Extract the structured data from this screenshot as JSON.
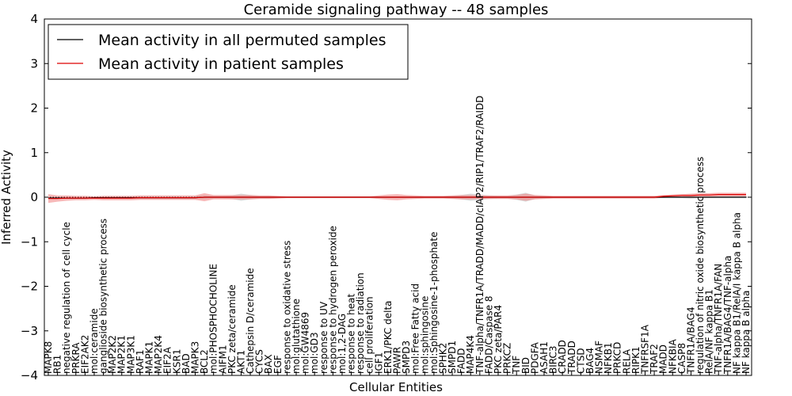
{
  "chart_data": {
    "type": "line",
    "title": "Ceramide signaling pathway -- 48 samples",
    "xlabel": "Cellular Entities",
    "ylabel": "Inferred Activity",
    "ylim": [
      -4,
      4
    ],
    "yticks": [
      "4",
      "3",
      "2",
      "1",
      "0",
      "−1",
      "−2",
      "−3",
      "−4"
    ],
    "grid": false,
    "legend_position": "upper-left",
    "categories": [
      "MAPK8",
      "RB1",
      "negative regulation of cell cycle",
      "PRKRA",
      "EIF2AK2",
      "mol:ceramide",
      "ganglioside biosynthetic process",
      "MAP2K2",
      "MAP2K1",
      "MAP3K1",
      "RAF1",
      "MAPK1",
      "MAP2K4",
      "EIF2A",
      "KSR1",
      "BAD",
      "MAPK3",
      "BCL2",
      "mol:PHOSPHOCHOLINE",
      "AIFM1",
      "PKC zeta/ceramide",
      "AKT1",
      "Cathepsin D/ceramide",
      "CYCS",
      "BAX",
      "EGF",
      "response to oxidative stress",
      "mol:glutathione",
      "mol:GW4869",
      "mol:GD3",
      "response to UV",
      "response to hydrogen peroxide",
      "mol:1,2-DAG",
      "response to heat",
      "response to radiation",
      "cell proliferation",
      "IGF1",
      "ERK1/PKC delta",
      "PAWR",
      "SMPD3",
      "mol:Free Fatty acid",
      "mol:sphingosine",
      "mol:Sphingosine-1-phosphate",
      "SPHK2",
      "SMPD1",
      "FADD",
      "MAP4K4",
      "TNF-alpha/TNFR1A/TRADD/MADD/cIAP2/RIP1/TRAF2/RAIDD",
      "FADD/Caspase 8",
      "PKC zeta/PAR4",
      "PRKCZ",
      "TNF",
      "BID",
      "PDGFA",
      "ASAH1",
      "BIRC3",
      "CRADD",
      "TRADD",
      "CTSD",
      "BAG4",
      "NSMAF",
      "NFKB1",
      "PRKCD",
      "RELA",
      "RIPK1",
      "TNFRSF1A",
      "TRAF2",
      "MADD",
      "NFKBIA",
      "CASP8",
      "TNFR1A/BAG4",
      "regulation of nitric oxide biosynthetic process",
      "RelA/NF kappa B1",
      "TNF-alpha/TNFR1A/FAN",
      "TNFR1A/BAG4/TNF-alpha",
      "NF kappa B1/RelA/I kappa B alpha",
      "NF kappa B alpha"
    ],
    "series": [
      {
        "name": "Mean activity in all permuted samples",
        "color": "#000000",
        "band_color": "#b0b0b0",
        "values": [
          -0.02,
          -0.02,
          -0.02,
          -0.02,
          -0.02,
          -0.01,
          -0.01,
          -0.01,
          -0.01,
          -0.01,
          -0.01,
          -0.01,
          -0.01,
          -0.01,
          -0.01,
          -0.01,
          -0.01,
          0,
          0,
          0,
          0,
          0,
          0,
          0,
          0,
          0,
          0,
          0,
          0,
          0,
          0,
          0,
          0,
          0,
          0,
          0,
          0,
          0,
          0,
          0,
          0,
          0,
          0,
          0,
          0,
          0,
          0,
          0,
          0,
          0,
          0,
          0,
          0,
          0,
          0,
          0,
          0,
          0,
          0,
          0,
          0,
          0,
          0,
          0,
          0,
          0,
          0,
          0,
          0,
          0,
          0,
          0,
          0,
          0,
          0,
          0,
          0
        ],
        "band": [
          0.02,
          0.02,
          0.02,
          0.02,
          0.02,
          0.02,
          0.03,
          0.03,
          0.03,
          0.03,
          0.03,
          0.03,
          0.03,
          0.03,
          0.03,
          0.03,
          0.03,
          0.05,
          0.03,
          0.03,
          0.04,
          0.08,
          0.05,
          0.03,
          0.03,
          0.02,
          0.02,
          0.02,
          0.02,
          0.02,
          0.02,
          0.02,
          0.02,
          0.02,
          0.02,
          0.02,
          0.02,
          0.02,
          0.02,
          0.02,
          0.02,
          0.02,
          0.02,
          0.02,
          0.03,
          0.05,
          0.08,
          0.06,
          0.04,
          0.03,
          0.03,
          0.06,
          0.1,
          0.04,
          0.03,
          0.02,
          0.02,
          0.02,
          0.02,
          0.02,
          0.02,
          0.02,
          0.02,
          0.02,
          0.02,
          0.02,
          0.02,
          0.02,
          0.02,
          0.02,
          0.03,
          0.02,
          0.02,
          0.02,
          0.02,
          0.02,
          0.02
        ]
      },
      {
        "name": "Mean activity in patient samples",
        "color": "#dd0000",
        "band_color": "#f08080",
        "values": [
          -0.03,
          -0.03,
          -0.02,
          -0.02,
          -0.02,
          -0.02,
          -0.02,
          -0.02,
          -0.02,
          -0.02,
          -0.01,
          -0.01,
          -0.01,
          -0.01,
          -0.01,
          -0.01,
          -0.01,
          0,
          0,
          0,
          0,
          0,
          0,
          0,
          0,
          0,
          0,
          0,
          0,
          0,
          0,
          0,
          0,
          0,
          0,
          0,
          0,
          0,
          0,
          0,
          0,
          0,
          0,
          0,
          0,
          0,
          0,
          0,
          0,
          0,
          0,
          0,
          0,
          0,
          0,
          0,
          0,
          0,
          0,
          0,
          0,
          0,
          0,
          0,
          0,
          0,
          0,
          0.02,
          0.03,
          0.04,
          0.04,
          0.05,
          0.05,
          0.06,
          0.06,
          0.06,
          0.06
        ],
        "band": [
          0.1,
          0.07,
          0.06,
          0.05,
          0.05,
          0.04,
          0.05,
          0.05,
          0.05,
          0.05,
          0.05,
          0.05,
          0.05,
          0.05,
          0.05,
          0.05,
          0.05,
          0.09,
          0.05,
          0.05,
          0.05,
          0.05,
          0.05,
          0.04,
          0.04,
          0.03,
          0.02,
          0.02,
          0.02,
          0.02,
          0.02,
          0.02,
          0.02,
          0.02,
          0.02,
          0.02,
          0.04,
          0.06,
          0.07,
          0.05,
          0.04,
          0.03,
          0.03,
          0.03,
          0.04,
          0.05,
          0.05,
          0.04,
          0.04,
          0.04,
          0.04,
          0.05,
          0.08,
          0.05,
          0.04,
          0.03,
          0.03,
          0.03,
          0.03,
          0.03,
          0.03,
          0.03,
          0.03,
          0.03,
          0.03,
          0.03,
          0.03,
          0.03,
          0.03,
          0.03,
          0.04,
          0.04,
          0.04,
          0.04,
          0.04,
          0.04,
          0.04
        ]
      }
    ]
  }
}
